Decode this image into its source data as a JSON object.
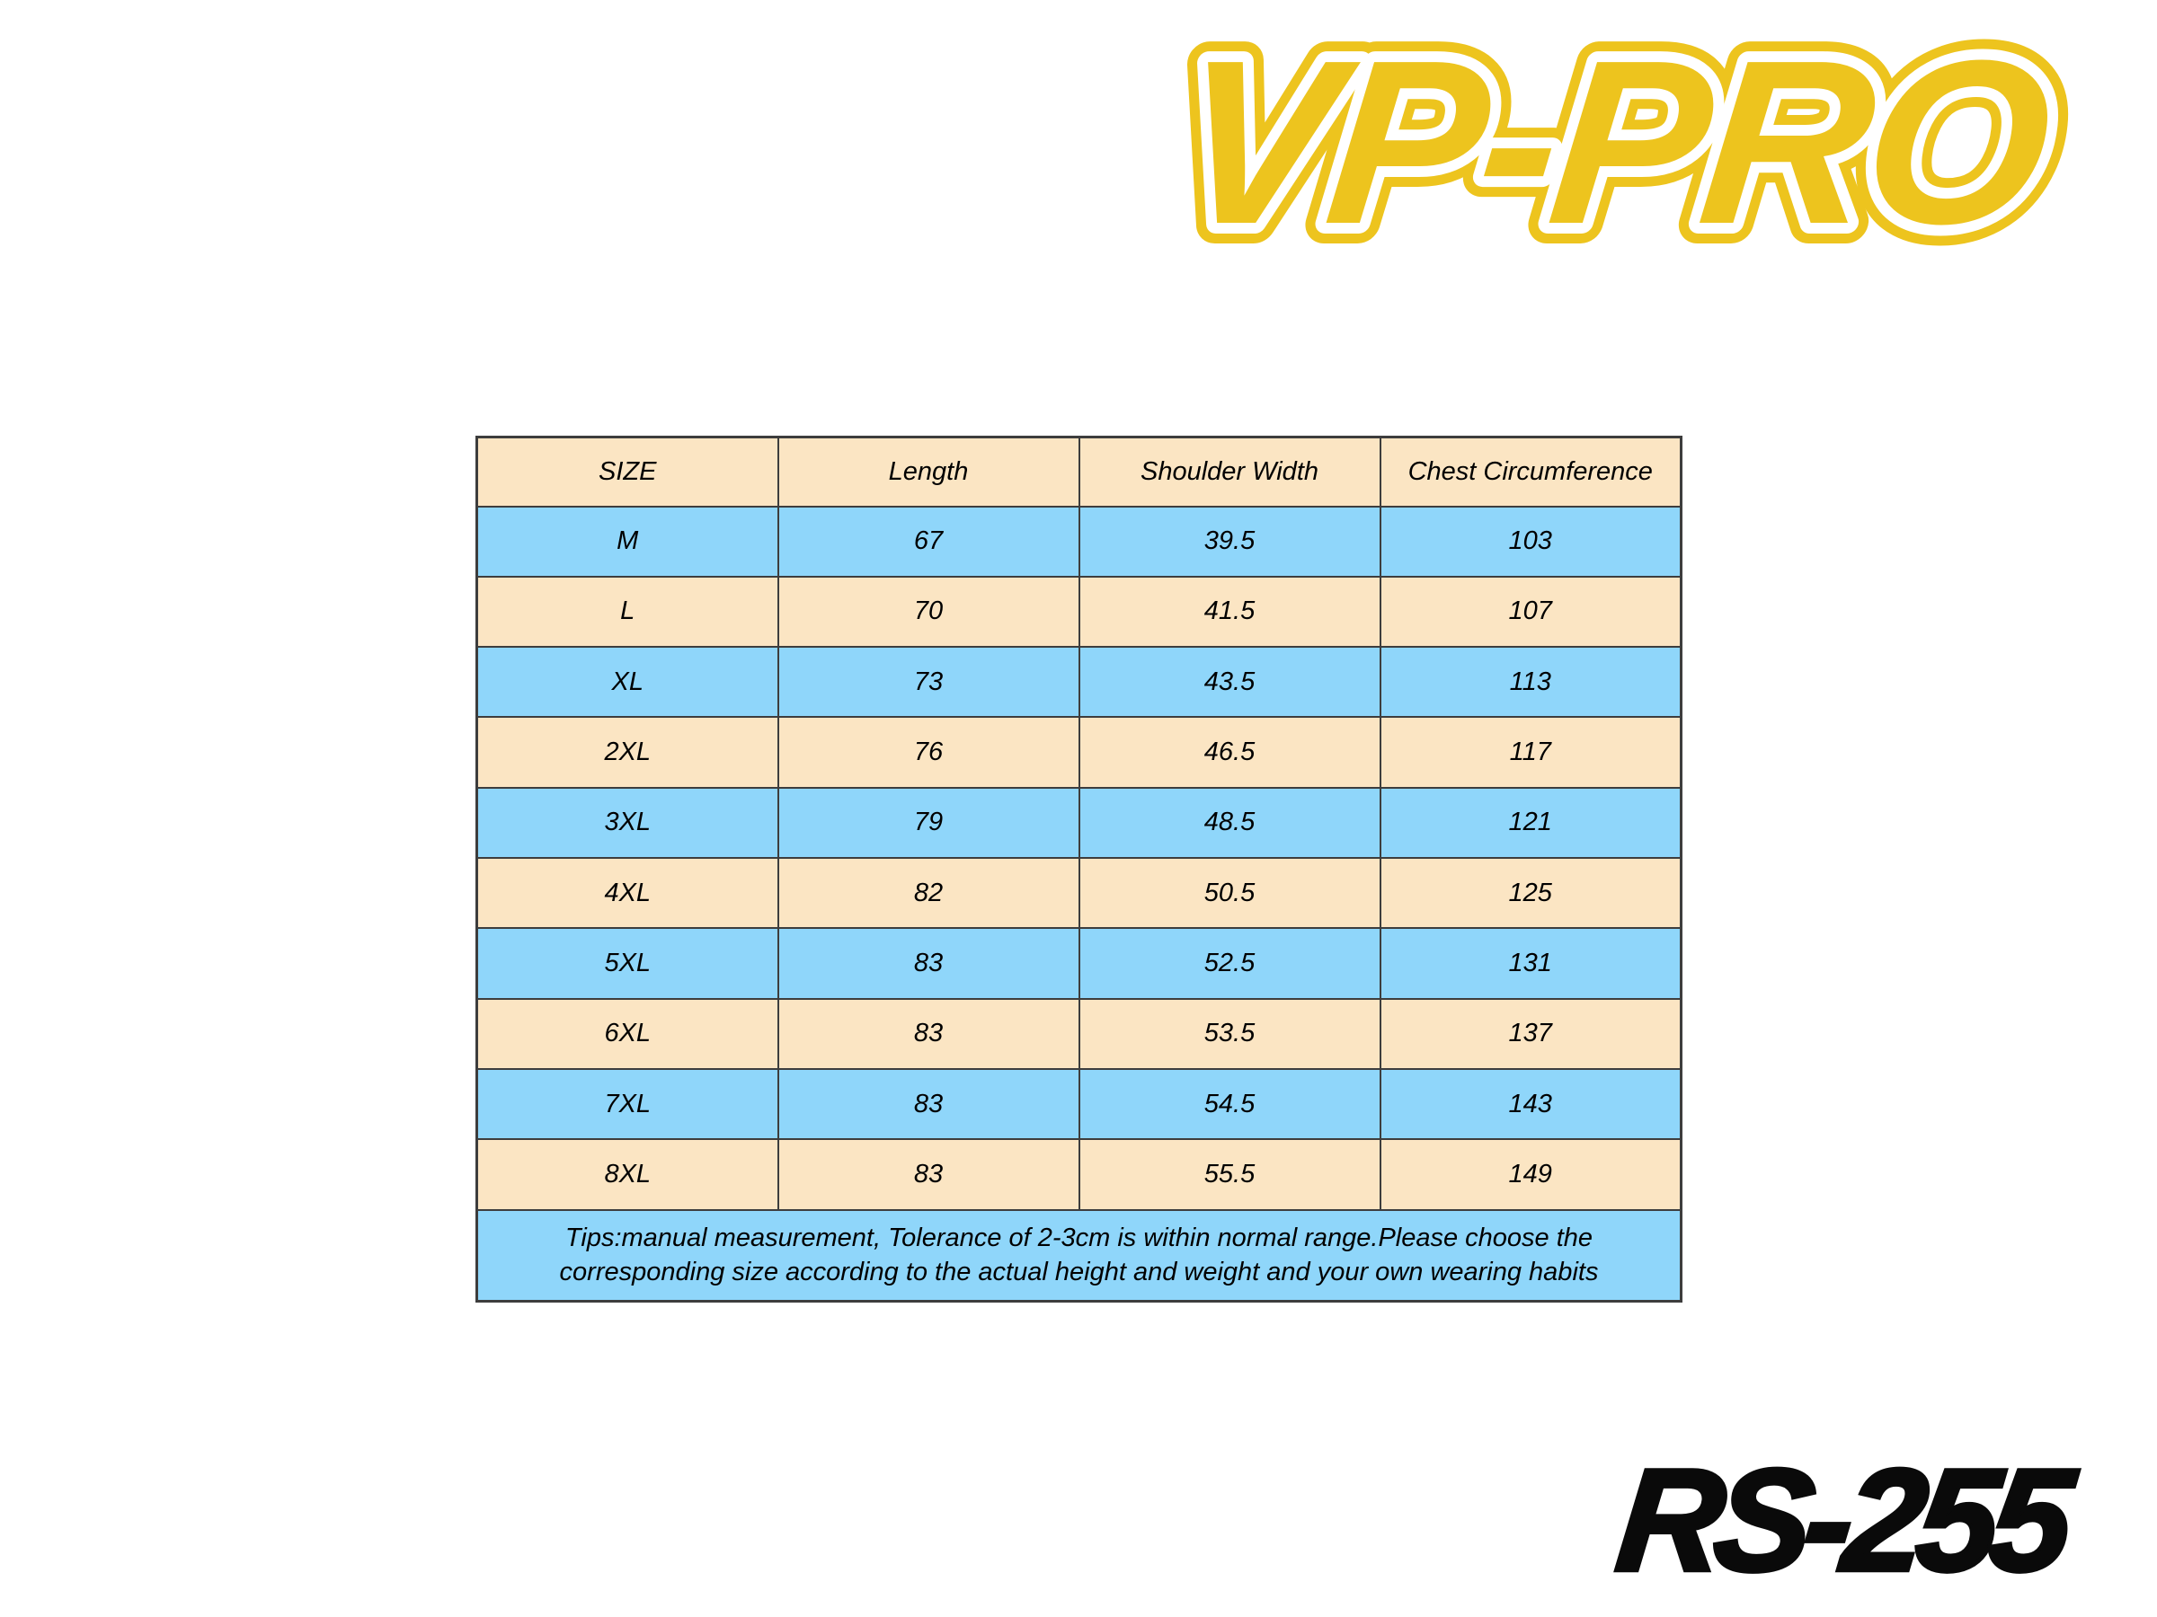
{
  "colors": {
    "brand-yellow": "#EDC41E",
    "row-peach": "#FBE5C3",
    "row-blue": "#8FD6FA",
    "table-border": "#3D3D3D",
    "table-text": "#000000",
    "code-black": "#0A0A0A",
    "page-bg": "#FFFFFF"
  },
  "logo": {
    "text": "VP-PRO"
  },
  "product_code": "RS-255",
  "size_chart": {
    "headers": [
      "SIZE",
      "Length",
      "Shoulder Width",
      "Chest Circumference"
    ],
    "rows": [
      [
        "M",
        "67",
        "39.5",
        "103"
      ],
      [
        "L",
        "70",
        "41.5",
        "107"
      ],
      [
        "XL",
        "73",
        "43.5",
        "113"
      ],
      [
        "2XL",
        "76",
        "46.5",
        "117"
      ],
      [
        "3XL",
        "79",
        "48.5",
        "121"
      ],
      [
        "4XL",
        "82",
        "50.5",
        "125"
      ],
      [
        "5XL",
        "83",
        "52.5",
        "131"
      ],
      [
        "6XL",
        "83",
        "53.5",
        "137"
      ],
      [
        "7XL",
        "83",
        "54.5",
        "143"
      ],
      [
        "8XL",
        "83",
        "55.5",
        "149"
      ]
    ],
    "tips_lines": [
      "Tips:manual measurement, Tolerance of 2-3cm is within normal range.Please choose the",
      "corresponding size according to the actual height and weight and your own wearing habits"
    ]
  }
}
